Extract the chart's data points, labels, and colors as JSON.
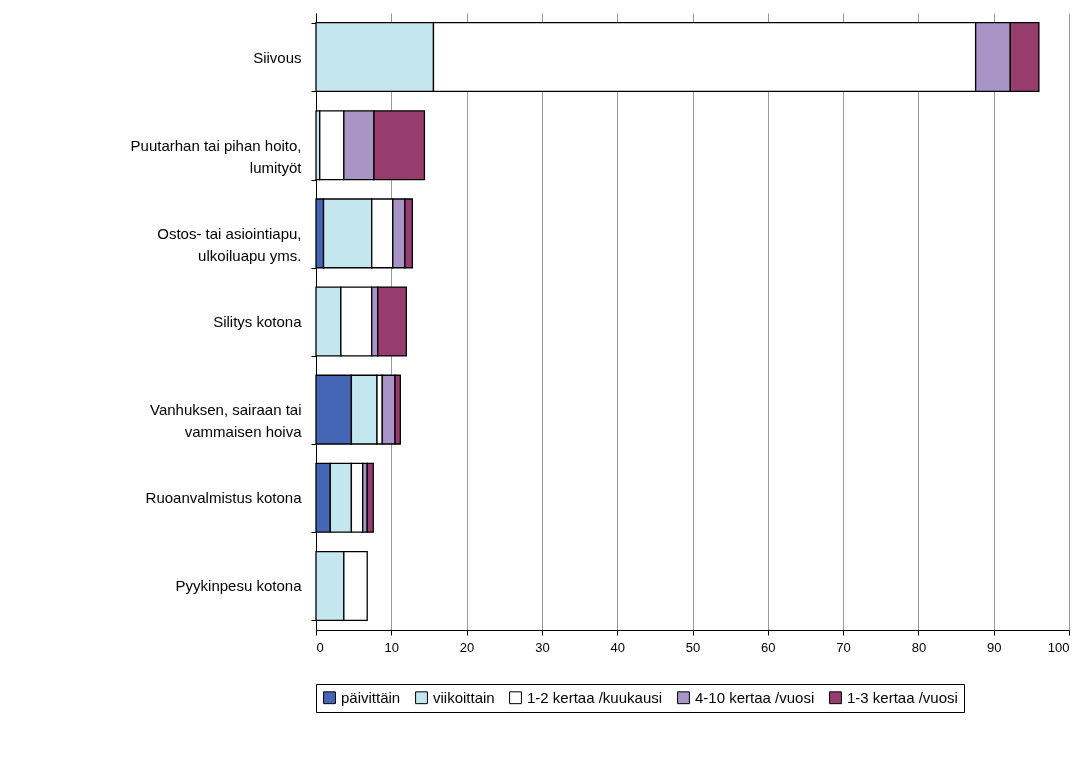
{
  "chart_data": {
    "type": "bar",
    "orientation": "horizontal",
    "stacked": true,
    "categories": [
      "Siivous",
      "Puutarhan tai pihan hoito,\nlumityöt",
      "Ostos- tai asiointiapu,\nulkoiluapu yms.",
      "Silitys kotona",
      "Vanhuksen, sairaan  tai\nvammaisen hoiva",
      "Ruoanvalmistus kotona",
      "Pyykinpesu kotona"
    ],
    "series": [
      {
        "name": "päivittäin",
        "color": "#4466b4",
        "values": [
          null,
          null,
          1.0,
          null,
          4.7,
          1.9,
          null
        ]
      },
      {
        "name": "viikoittain",
        "color": "#c4e6ee",
        "values": [
          15.6,
          0.5,
          6.4,
          3.3,
          3.4,
          2.8,
          3.7
        ]
      },
      {
        "name": "1-2 kertaa /kuukausi",
        "color": "#ffffff",
        "values": [
          72.0,
          3.2,
          2.8,
          4.1,
          0.7,
          1.5,
          3.1
        ]
      },
      {
        "name": "4-10 kertaa /vuosi",
        "color": "#a994c6",
        "values": [
          4.6,
          4.0,
          1.6,
          0.8,
          1.7,
          0.6,
          null
        ]
      },
      {
        "name": "1-3 kertaa /vuosi",
        "color": "#963d6e",
        "values": [
          3.8,
          6.7,
          1.0,
          3.8,
          0.7,
          0.8,
          null
        ]
      }
    ],
    "xlim": [
      0,
      100
    ],
    "xticks": [
      0,
      10,
      20,
      30,
      40,
      50,
      60,
      70,
      80,
      90,
      100
    ],
    "grid": "x",
    "legend": "bottom"
  }
}
